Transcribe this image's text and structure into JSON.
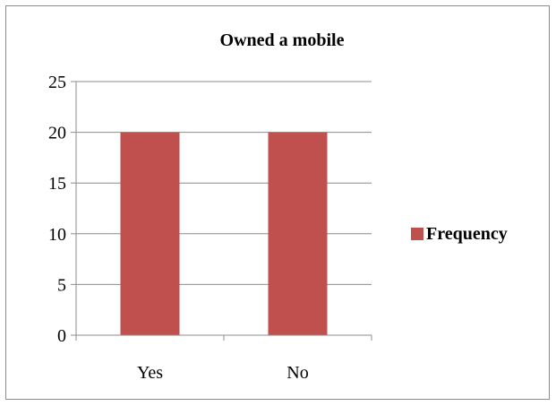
{
  "chart_data": {
    "type": "bar",
    "title": "Owned a mobile",
    "categories": [
      "Yes",
      "No"
    ],
    "series": [
      {
        "name": "Frequency",
        "values": [
          20,
          20
        ],
        "color": "#c0504d"
      }
    ],
    "xlabel": "",
    "ylabel": "",
    "ylim": [
      0,
      25
    ],
    "yticks": [
      0,
      5,
      10,
      15,
      20,
      25
    ],
    "grid": "horizontal",
    "legend": "right"
  }
}
